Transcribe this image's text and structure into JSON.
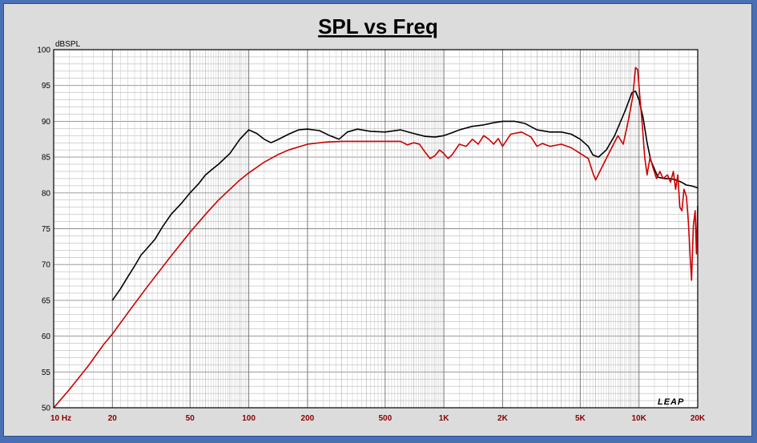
{
  "chart_data": {
    "type": "line",
    "title": "SPL vs Freq",
    "ylabel": "dBSPL",
    "x_scale": "log",
    "xlim": [
      10,
      20000
    ],
    "ylim": [
      50,
      100
    ],
    "y_ticks": [
      100,
      95,
      90,
      85,
      80,
      75,
      70,
      65,
      60,
      55,
      50
    ],
    "x_tick_labels": [
      {
        "value": 10,
        "label": "10 Hz"
      },
      {
        "value": 20,
        "label": "20"
      },
      {
        "value": 50,
        "label": "50"
      },
      {
        "value": 100,
        "label": "100"
      },
      {
        "value": 200,
        "label": "200"
      },
      {
        "value": 500,
        "label": "500"
      },
      {
        "value": 1000,
        "label": "1K"
      },
      {
        "value": 2000,
        "label": "2K"
      },
      {
        "value": 5000,
        "label": "5K"
      },
      {
        "value": 10000,
        "label": "10K"
      },
      {
        "value": 20000,
        "label": "20K"
      }
    ],
    "grid": true,
    "watermark": "LEAP",
    "colors": {
      "black_series": "#000000",
      "red_series": "#cc0000",
      "plot_bg": "#ffffff",
      "grid": "#a8a8a8"
    },
    "series": [
      {
        "color": "#000000",
        "points": [
          [
            20,
            65
          ],
          [
            22,
            66.6
          ],
          [
            24,
            68.3
          ],
          [
            26,
            69.8
          ],
          [
            28,
            71.3
          ],
          [
            30,
            72.2
          ],
          [
            33,
            73.5
          ],
          [
            36,
            75.2
          ],
          [
            40,
            77
          ],
          [
            45,
            78.5
          ],
          [
            50,
            80
          ],
          [
            55,
            81.2
          ],
          [
            60,
            82.5
          ],
          [
            65,
            83.3
          ],
          [
            70,
            84
          ],
          [
            80,
            85.5
          ],
          [
            90,
            87.5
          ],
          [
            100,
            88.8
          ],
          [
            110,
            88.3
          ],
          [
            120,
            87.5
          ],
          [
            130,
            87
          ],
          [
            140,
            87.4
          ],
          [
            160,
            88.2
          ],
          [
            180,
            88.8
          ],
          [
            200,
            88.9
          ],
          [
            230,
            88.7
          ],
          [
            260,
            88
          ],
          [
            290,
            87.5
          ],
          [
            320,
            88.5
          ],
          [
            360,
            88.9
          ],
          [
            420,
            88.6
          ],
          [
            500,
            88.5
          ],
          [
            600,
            88.8
          ],
          [
            700,
            88.3
          ],
          [
            800,
            87.9
          ],
          [
            900,
            87.8
          ],
          [
            1000,
            88
          ],
          [
            1100,
            88.4
          ],
          [
            1200,
            88.8
          ],
          [
            1400,
            89.3
          ],
          [
            1600,
            89.5
          ],
          [
            1800,
            89.8
          ],
          [
            2000,
            90
          ],
          [
            2300,
            90
          ],
          [
            2600,
            89.7
          ],
          [
            3000,
            88.8
          ],
          [
            3500,
            88.5
          ],
          [
            4000,
            88.5
          ],
          [
            4500,
            88.2
          ],
          [
            5000,
            87.5
          ],
          [
            5500,
            86.5
          ],
          [
            5800,
            85.3
          ],
          [
            6200,
            85
          ],
          [
            6800,
            86
          ],
          [
            7500,
            88
          ],
          [
            8500,
            91.5
          ],
          [
            9200,
            94
          ],
          [
            9600,
            94.2
          ],
          [
            10000,
            93
          ],
          [
            10500,
            90.5
          ],
          [
            11000,
            87
          ],
          [
            11500,
            84.5
          ],
          [
            12500,
            82.2
          ],
          [
            13500,
            82
          ],
          [
            14500,
            82
          ],
          [
            15500,
            81.8
          ],
          [
            16500,
            81.5
          ],
          [
            17500,
            81.1
          ],
          [
            18500,
            81
          ],
          [
            20000,
            80.7
          ]
        ]
      },
      {
        "color": "#cc0000",
        "points": [
          [
            10,
            50
          ],
          [
            12,
            52.5
          ],
          [
            15,
            55.8
          ],
          [
            18,
            58.8
          ],
          [
            20,
            60.3
          ],
          [
            25,
            63.9
          ],
          [
            30,
            66.8
          ],
          [
            40,
            71.2
          ],
          [
            50,
            74.5
          ],
          [
            60,
            77
          ],
          [
            70,
            79
          ],
          [
            80,
            80.5
          ],
          [
            90,
            81.8
          ],
          [
            100,
            82.8
          ],
          [
            120,
            84.3
          ],
          [
            140,
            85.3
          ],
          [
            160,
            86
          ],
          [
            200,
            86.8
          ],
          [
            250,
            87.1
          ],
          [
            300,
            87.2
          ],
          [
            400,
            87.2
          ],
          [
            500,
            87.2
          ],
          [
            600,
            87.2
          ],
          [
            650,
            86.7
          ],
          [
            700,
            87
          ],
          [
            750,
            86.8
          ],
          [
            800,
            85.7
          ],
          [
            850,
            84.8
          ],
          [
            900,
            85.2
          ],
          [
            950,
            86
          ],
          [
            1000,
            85.5
          ],
          [
            1050,
            84.8
          ],
          [
            1100,
            85.3
          ],
          [
            1200,
            86.8
          ],
          [
            1300,
            86.5
          ],
          [
            1400,
            87.5
          ],
          [
            1500,
            86.8
          ],
          [
            1600,
            88
          ],
          [
            1700,
            87.5
          ],
          [
            1800,
            86.8
          ],
          [
            1900,
            87.6
          ],
          [
            2000,
            86.5
          ],
          [
            2200,
            88.2
          ],
          [
            2500,
            88.5
          ],
          [
            2800,
            87.8
          ],
          [
            3000,
            86.5
          ],
          [
            3200,
            86.9
          ],
          [
            3500,
            86.5
          ],
          [
            4000,
            86.8
          ],
          [
            4500,
            86.3
          ],
          [
            5000,
            85.5
          ],
          [
            5500,
            84.8
          ],
          [
            5800,
            82.8
          ],
          [
            6000,
            81.8
          ],
          [
            6300,
            83
          ],
          [
            7000,
            85.5
          ],
          [
            7800,
            88
          ],
          [
            8300,
            86.8
          ],
          [
            8800,
            90
          ],
          [
            9300,
            93.5
          ],
          [
            9600,
            97.5
          ],
          [
            9850,
            97.2
          ],
          [
            10100,
            93.5
          ],
          [
            10400,
            89.5
          ],
          [
            10700,
            85
          ],
          [
            11000,
            82.5
          ],
          [
            11400,
            85
          ],
          [
            11800,
            83.5
          ],
          [
            12300,
            82
          ],
          [
            12800,
            83
          ],
          [
            13300,
            82
          ],
          [
            14000,
            82.5
          ],
          [
            14500,
            81.5
          ],
          [
            15000,
            83
          ],
          [
            15400,
            80.5
          ],
          [
            15800,
            82.5
          ],
          [
            16200,
            78
          ],
          [
            16600,
            77.5
          ],
          [
            17000,
            80.5
          ],
          [
            17500,
            79.5
          ],
          [
            17900,
            76
          ],
          [
            18300,
            71
          ],
          [
            18600,
            67.8
          ],
          [
            19000,
            75.5
          ],
          [
            19400,
            77.5
          ],
          [
            19700,
            71.5
          ],
          [
            20000,
            78.2
          ]
        ]
      }
    ]
  }
}
